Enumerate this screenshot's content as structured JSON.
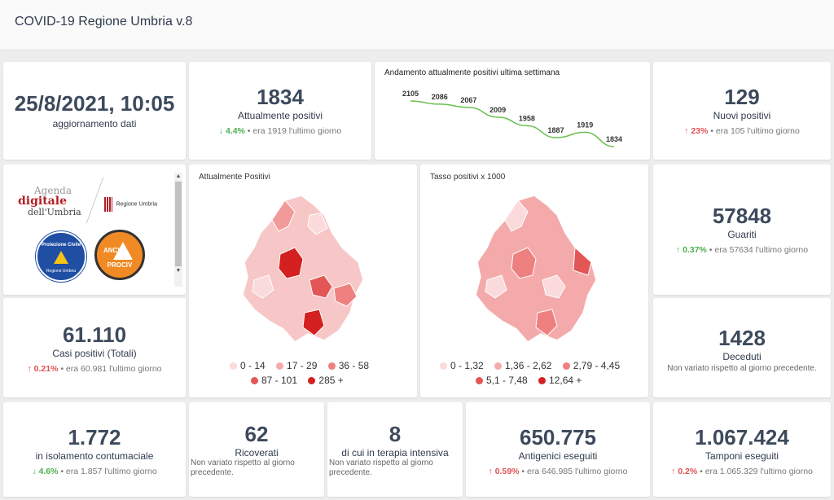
{
  "app": {
    "title": "COVID-19 Regione Umbria v.8"
  },
  "update": {
    "datetime": "25/8/2021, 10:05",
    "label": "aggiornamento dati"
  },
  "positivi": {
    "value": "1834",
    "label": "Attualmente positivi",
    "arrow": "↓",
    "pct": "4.4%",
    "note": "• era 1919 l'ultimo giorno"
  },
  "trend": {
    "title": "Andamento attualmente positivi ultima settimana"
  },
  "chart_data": {
    "type": "line",
    "title": "Andamento attualmente positivi ultima settimana",
    "values": [
      2105,
      2086,
      2067,
      2009,
      1958,
      1887,
      1919,
      1834
    ],
    "labels": [
      "2105",
      "2086",
      "2067",
      "2009",
      "1958",
      "1887",
      "1919",
      "1834"
    ]
  },
  "nuovi": {
    "value": "129",
    "label": "Nuovi positivi",
    "arrow": "↑",
    "pct": "23%",
    "note": "• era 105 l'ultimo giorno"
  },
  "logos": {
    "agenda_line1": "Agenda",
    "agenda_line2": "digitale",
    "agenda_line3": "dell'Umbria",
    "regione": "Regione Umbria",
    "protezione": "Protezione Civile",
    "protezione_sub": "Regione Umbria",
    "anci": "ANCI",
    "prociv": "PROCIV"
  },
  "map1": {
    "title": "Attualmente Positivi",
    "legend": [
      {
        "label": "0 - 14",
        "color": "#fadada"
      },
      {
        "label": "17 - 29",
        "color": "#f4aaaa"
      },
      {
        "label": "36 - 58",
        "color": "#ee8080"
      },
      {
        "label": "87 - 101",
        "color": "#e25656"
      },
      {
        "label": "285 +",
        "color": "#d42020"
      }
    ]
  },
  "map2": {
    "title": "Tasso positivi x 1000",
    "legend": [
      {
        "label": "0 - 1,32",
        "color": "#fadada"
      },
      {
        "label": "1,36 - 2,62",
        "color": "#f4aaaa"
      },
      {
        "label": "2,79 - 4,45",
        "color": "#ee8080"
      },
      {
        "label": "5,1 - 7,48",
        "color": "#e25656"
      },
      {
        "label": "12,64 +",
        "color": "#d42020"
      }
    ]
  },
  "guariti": {
    "value": "57848",
    "label": "Guariti",
    "arrow": "↑",
    "pct": "0.37%",
    "note": "• era 57634 l'ultimo giorno"
  },
  "casi": {
    "value": "61.110",
    "label": "Casi positivi (Totali)",
    "arrow": "↑",
    "pct": "0.21%",
    "note": "• era 60.981 l'ultimo giorno"
  },
  "deceduti": {
    "value": "1428",
    "label": "Deceduti",
    "note": "Non variato rispetto al giorno precedente."
  },
  "isolamento": {
    "value": "1.772",
    "label": "in isolamento contumaciale",
    "arrow": "↓",
    "pct": "4.6%",
    "note": "• era 1.857 l'ultimo giorno"
  },
  "ricoverati": {
    "value": "62",
    "label": "Ricoverati",
    "note": "Non variato rispetto al giorno precedente."
  },
  "terapia": {
    "value": "8",
    "label": "di cui in terapia intensiva",
    "note": "Non variato rispetto al giorno precedente."
  },
  "antigenici": {
    "value": "650.775",
    "label": "Antigenici eseguiti",
    "arrow": "↑",
    "pct": "0.59%",
    "note": "• era 646.985 l'ultimo giorno"
  },
  "tamponi": {
    "value": "1.067.424",
    "label": "Tamponi eseguiti",
    "arrow": "↑",
    "pct": "0.2%",
    "note": "• era 1.065.329 l'ultimo giorno"
  },
  "colors": {
    "up": "#e05151",
    "down": "#4caf50",
    "line": "#6bbf4e"
  }
}
